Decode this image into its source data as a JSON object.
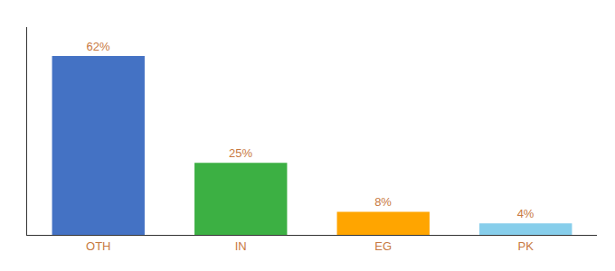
{
  "chart_data": {
    "type": "bar",
    "categories": [
      "OTH",
      "IN",
      "EG",
      "PK"
    ],
    "values": [
      62,
      25,
      8,
      4
    ],
    "value_labels": [
      "62%",
      "25%",
      "8%",
      "4%"
    ],
    "colors": [
      "#4472C4",
      "#3CB043",
      "#FFA500",
      "#87CEEB"
    ],
    "ylim": [
      0,
      72
    ],
    "grid": false,
    "data_labels": true,
    "tick_labels": "x"
  }
}
